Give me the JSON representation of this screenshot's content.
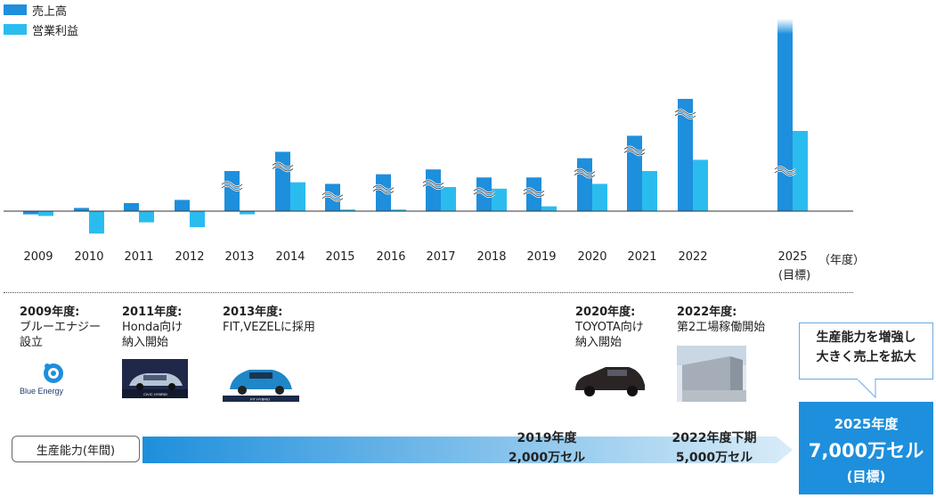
{
  "chart_data": {
    "type": "bar",
    "categories": [
      "2009",
      "2010",
      "2011",
      "2012",
      "2013",
      "2014",
      "2015",
      "2016",
      "2017",
      "2018",
      "2019",
      "2020",
      "2021",
      "2022",
      "2025"
    ],
    "series": [
      {
        "name": "売上高",
        "values": [
          -2,
          2,
          5,
          7,
          25,
          37,
          17,
          23,
          26,
          21,
          21,
          33,
          47,
          70,
          120
        ],
        "color": "#1e8fdc"
      },
      {
        "name": "営業利益",
        "values": [
          -3,
          -14,
          -7,
          -10,
          -2,
          18,
          1,
          1,
          15,
          14,
          3,
          17,
          25,
          32,
          50
        ],
        "color": "#2bbcef"
      }
    ],
    "axis_break_categories": [
      "2013",
      "2014",
      "2015",
      "2016",
      "2017",
      "2018",
      "2019",
      "2020",
      "2021",
      "2022",
      "2025"
    ],
    "ylim": [
      -16,
      120
    ],
    "unit_label": "（年度）",
    "target_label": "(目標)"
  },
  "legend": [
    {
      "label": "売上高",
      "color": "#1e8fdc"
    },
    {
      "label": "営業利益",
      "color": "#2bbcef"
    }
  ],
  "milestones": [
    {
      "title": "2009年度:",
      "desc": "ブルーエナジー\n設立"
    },
    {
      "title": "2011年度:",
      "desc": "Honda向け\n納入開始"
    },
    {
      "title": "2013年度:",
      "desc": "FIT,VEZELに採用"
    },
    {
      "title": "2020年度:",
      "desc": "TOYOTA向け\n納入開始"
    },
    {
      "title": "2022年度:",
      "desc": "第2工場稼働開始"
    }
  ],
  "logo_text": "Blue Energy",
  "image_captions": {
    "civic": "CIVIC HYBRID",
    "fit": "FIT HYBRID"
  },
  "callout": {
    "line1": "生産能力を増強し",
    "line2": "大きく売上を拡大"
  },
  "capacity": {
    "label": "生産能力(年間)",
    "points": [
      {
        "year": "2019年度",
        "value": "2,000万セル"
      },
      {
        "year": "2022年度下期",
        "value": "5,000万セル"
      }
    ],
    "target": {
      "year": "2025年度",
      "value": "7,000万セル",
      "note": "(目標)"
    }
  },
  "colors": {
    "accent": "#1e8fdc",
    "light": "#2bbcef"
  }
}
